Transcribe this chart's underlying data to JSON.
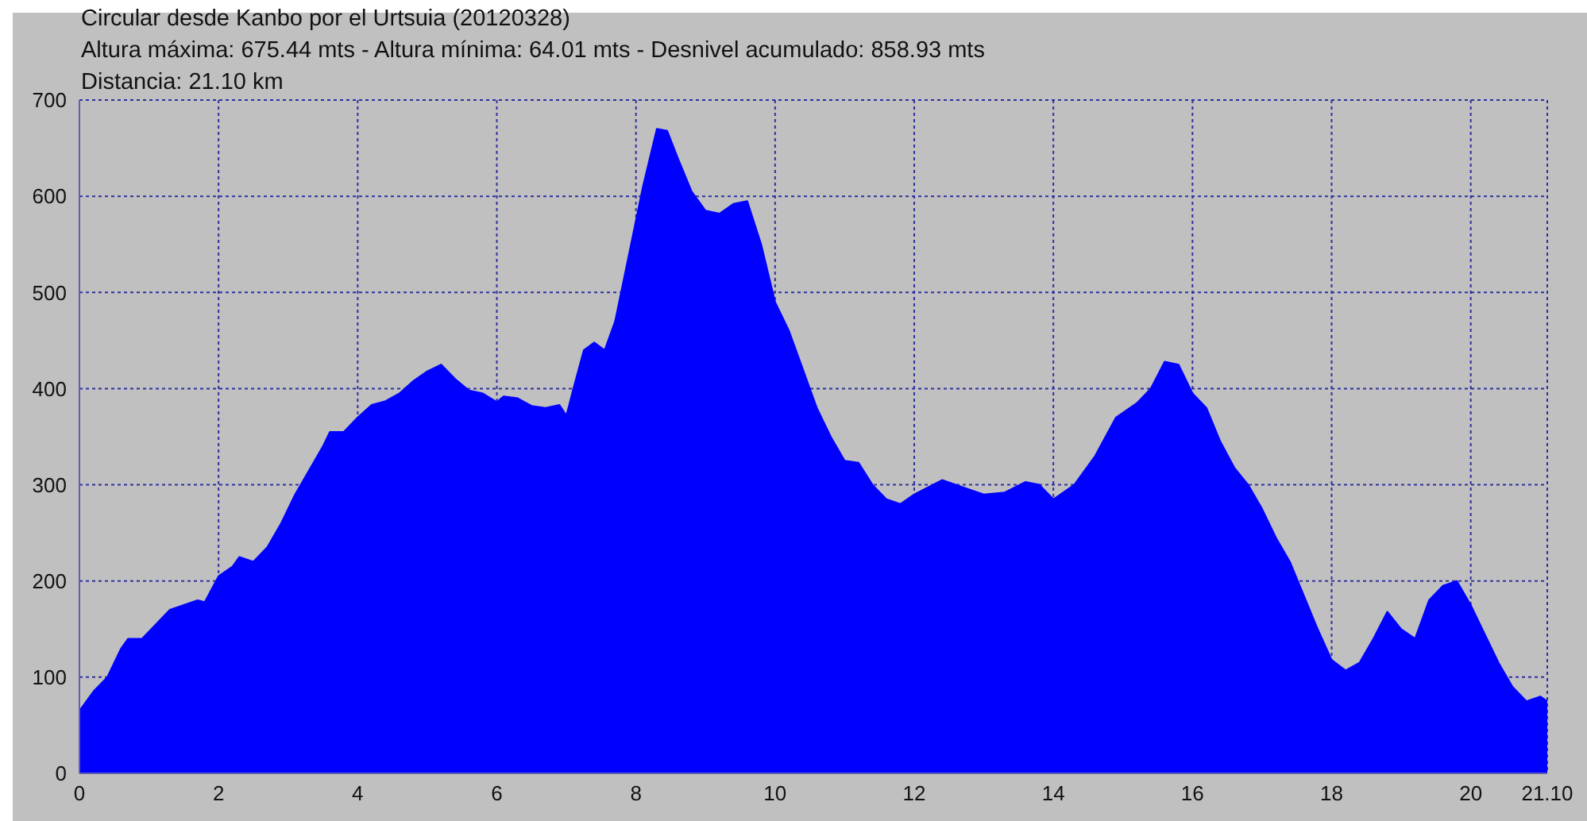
{
  "chart_data": {
    "type": "area",
    "title": "Circular desde Kanbo por el Urtsuia (20120328)",
    "subtitle": "Altura máxima: 675.44 mts - Altura mínima: 64.01 mts - Desnivel acumulado: 858.93 mts",
    "annotations": [
      "Distancia: 21.10 km"
    ],
    "x": [
      0,
      0.2,
      0.4,
      0.6,
      0.7,
      0.9,
      1.1,
      1.3,
      1.5,
      1.7,
      1.8,
      2.0,
      2.2,
      2.3,
      2.5,
      2.7,
      2.9,
      3.1,
      3.3,
      3.5,
      3.6,
      3.8,
      4.0,
      4.2,
      4.4,
      4.6,
      4.8,
      5.0,
      5.2,
      5.4,
      5.6,
      5.8,
      6.0,
      6.1,
      6.3,
      6.5,
      6.7,
      6.9,
      7.0,
      7.1,
      7.25,
      7.4,
      7.55,
      7.7,
      7.9,
      8.1,
      8.3,
      8.45,
      8.6,
      8.8,
      9.0,
      9.2,
      9.4,
      9.6,
      9.8,
      10.0,
      10.2,
      10.4,
      10.6,
      10.8,
      11.0,
      11.2,
      11.4,
      11.6,
      11.8,
      12.0,
      12.4,
      12.8,
      13.0,
      13.3,
      13.6,
      13.8,
      14.0,
      14.3,
      14.6,
      14.9,
      15.2,
      15.4,
      15.6,
      15.8,
      16.0,
      16.2,
      16.4,
      16.6,
      16.8,
      17.0,
      17.2,
      17.4,
      17.6,
      17.8,
      18.0,
      18.2,
      18.4,
      18.6,
      18.8,
      19.0,
      19.2,
      19.4,
      19.6,
      19.8,
      20.0,
      20.2,
      20.4,
      20.6,
      20.8,
      21.0,
      21.1
    ],
    "series": [
      {
        "color": "#0000ff",
        "values": [
          65,
          85,
          100,
          130,
          140,
          140,
          155,
          170,
          175,
          180,
          178,
          205,
          215,
          225,
          220,
          235,
          260,
          290,
          315,
          340,
          355,
          355,
          370,
          383,
          387,
          395,
          408,
          418,
          425,
          410,
          398,
          395,
          386,
          392,
          390,
          382,
          380,
          383,
          372,
          400,
          440,
          448,
          440,
          470,
          540,
          610,
          670,
          668,
          640,
          605,
          585,
          582,
          592,
          595,
          550,
          490,
          460,
          420,
          380,
          350,
          325,
          323,
          300,
          285,
          280,
          290,
          305,
          295,
          290,
          292,
          303,
          300,
          285,
          300,
          330,
          370,
          385,
          400,
          428,
          425,
          395,
          380,
          345,
          318,
          300,
          275,
          245,
          220,
          185,
          150,
          118,
          107,
          115,
          140,
          168,
          150,
          140,
          180,
          195,
          200,
          175,
          145,
          115,
          90,
          75,
          80,
          75
        ]
      }
    ],
    "xlim": [
      0,
      21.1
    ],
    "xticks": [
      0,
      2,
      4,
      6,
      8,
      10,
      12,
      14,
      16,
      18,
      20,
      {
        "value": 21.1,
        "label": "21.10"
      }
    ],
    "ylim": [
      0,
      700
    ],
    "yticks": [
      0,
      100,
      200,
      300,
      400,
      500,
      600,
      700
    ],
    "grid": true,
    "legend": false
  }
}
